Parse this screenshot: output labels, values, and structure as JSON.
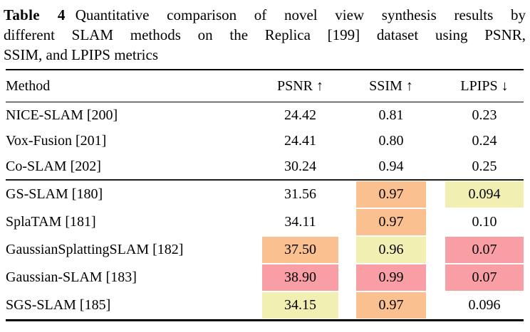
{
  "caption": {
    "label": "Table 4",
    "lines": [
      "Quantitative comparison of novel view synthesis results by",
      "different SLAM methods on the Replica [199] dataset using PSNR,",
      "SSIM, and LPIPS metrics"
    ]
  },
  "highlight_colors": {
    "best": "#FA9EA6",
    "second": "#FBC08F",
    "third": "#F2EFB2"
  },
  "table": {
    "columns": {
      "method": "Method",
      "psnr": "PSNR ↑",
      "ssim": "SSIM ↑",
      "lpips": "LPIPS ↓"
    },
    "rows": [
      {
        "method": "NICE-SLAM [200]",
        "psnr": "24.42",
        "ssim": "0.81",
        "lpips": "0.23",
        "psnr_rank": "",
        "ssim_rank": "",
        "lpips_rank": ""
      },
      {
        "method": "Vox-Fusion [201]",
        "psnr": "24.41",
        "ssim": "0.80",
        "lpips": "0.24",
        "psnr_rank": "",
        "ssim_rank": "",
        "lpips_rank": ""
      },
      {
        "method": "Co-SLAM [202]",
        "psnr": "30.24",
        "ssim": "0.94",
        "lpips": "0.25",
        "psnr_rank": "",
        "ssim_rank": "",
        "lpips_rank": ""
      },
      {
        "method": "GS-SLAM [180]",
        "psnr": "31.56",
        "ssim": "0.97",
        "lpips": "0.094",
        "psnr_rank": "",
        "ssim_rank": "second",
        "lpips_rank": "third"
      },
      {
        "method": "SplaTAM [181]",
        "psnr": "34.11",
        "ssim": "0.97",
        "lpips": "0.10",
        "psnr_rank": "",
        "ssim_rank": "second",
        "lpips_rank": ""
      },
      {
        "method": "GaussianSplattingSLAM [182]",
        "psnr": "37.50",
        "ssim": "0.96",
        "lpips": "0.07",
        "psnr_rank": "second",
        "ssim_rank": "third",
        "lpips_rank": "best"
      },
      {
        "method": "Gaussian-SLAM [183]",
        "psnr": "38.90",
        "ssim": "0.99",
        "lpips": "0.07",
        "psnr_rank": "best",
        "ssim_rank": "best",
        "lpips_rank": "best"
      },
      {
        "method": "SGS-SLAM [185]",
        "psnr": "34.15",
        "ssim": "0.97",
        "lpips": "0.096",
        "psnr_rank": "third",
        "ssim_rank": "second",
        "lpips_rank": ""
      }
    ]
  }
}
